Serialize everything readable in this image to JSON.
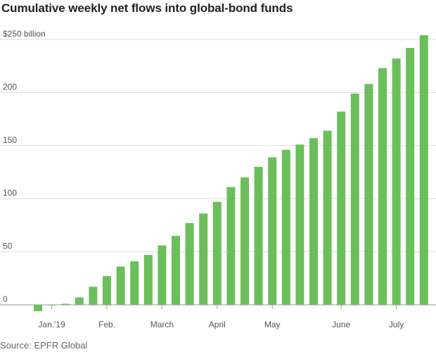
{
  "title": "Cumulative weekly net flows into global-bond funds",
  "source": "Source: EPFR Global",
  "colors": {
    "bar": "#6abf5a",
    "gridline": "#dddddd",
    "zero_line": "#999999"
  },
  "chart_data": {
    "type": "bar",
    "title": "Cumulative weekly net flows into global-bond funds",
    "xlabel": "",
    "ylabel": "",
    "ylim": [
      0,
      250
    ],
    "grid": true,
    "y_ticks": [
      {
        "value": 250,
        "label": "$250 billion"
      },
      {
        "value": 200,
        "label": "200"
      },
      {
        "value": 150,
        "label": "150"
      },
      {
        "value": 100,
        "label": "100"
      },
      {
        "value": 50,
        "label": "50"
      },
      {
        "value": 0,
        "label": "0"
      }
    ],
    "x_tick_labels": [
      {
        "bar_index": 1,
        "label": "Jan.'19"
      },
      {
        "bar_index": 5,
        "label": "Feb."
      },
      {
        "bar_index": 9,
        "label": "March"
      },
      {
        "bar_index": 13,
        "label": "April"
      },
      {
        "bar_index": 17,
        "label": "May"
      },
      {
        "bar_index": 22,
        "label": "June"
      },
      {
        "bar_index": 26,
        "label": "July"
      }
    ],
    "values": [
      -6,
      0,
      1,
      7,
      17,
      27,
      36,
      41,
      47,
      56,
      65,
      77,
      86,
      97,
      111,
      120,
      130,
      139,
      146,
      151,
      157,
      164,
      182,
      199,
      208,
      223,
      232,
      242,
      254
    ]
  }
}
